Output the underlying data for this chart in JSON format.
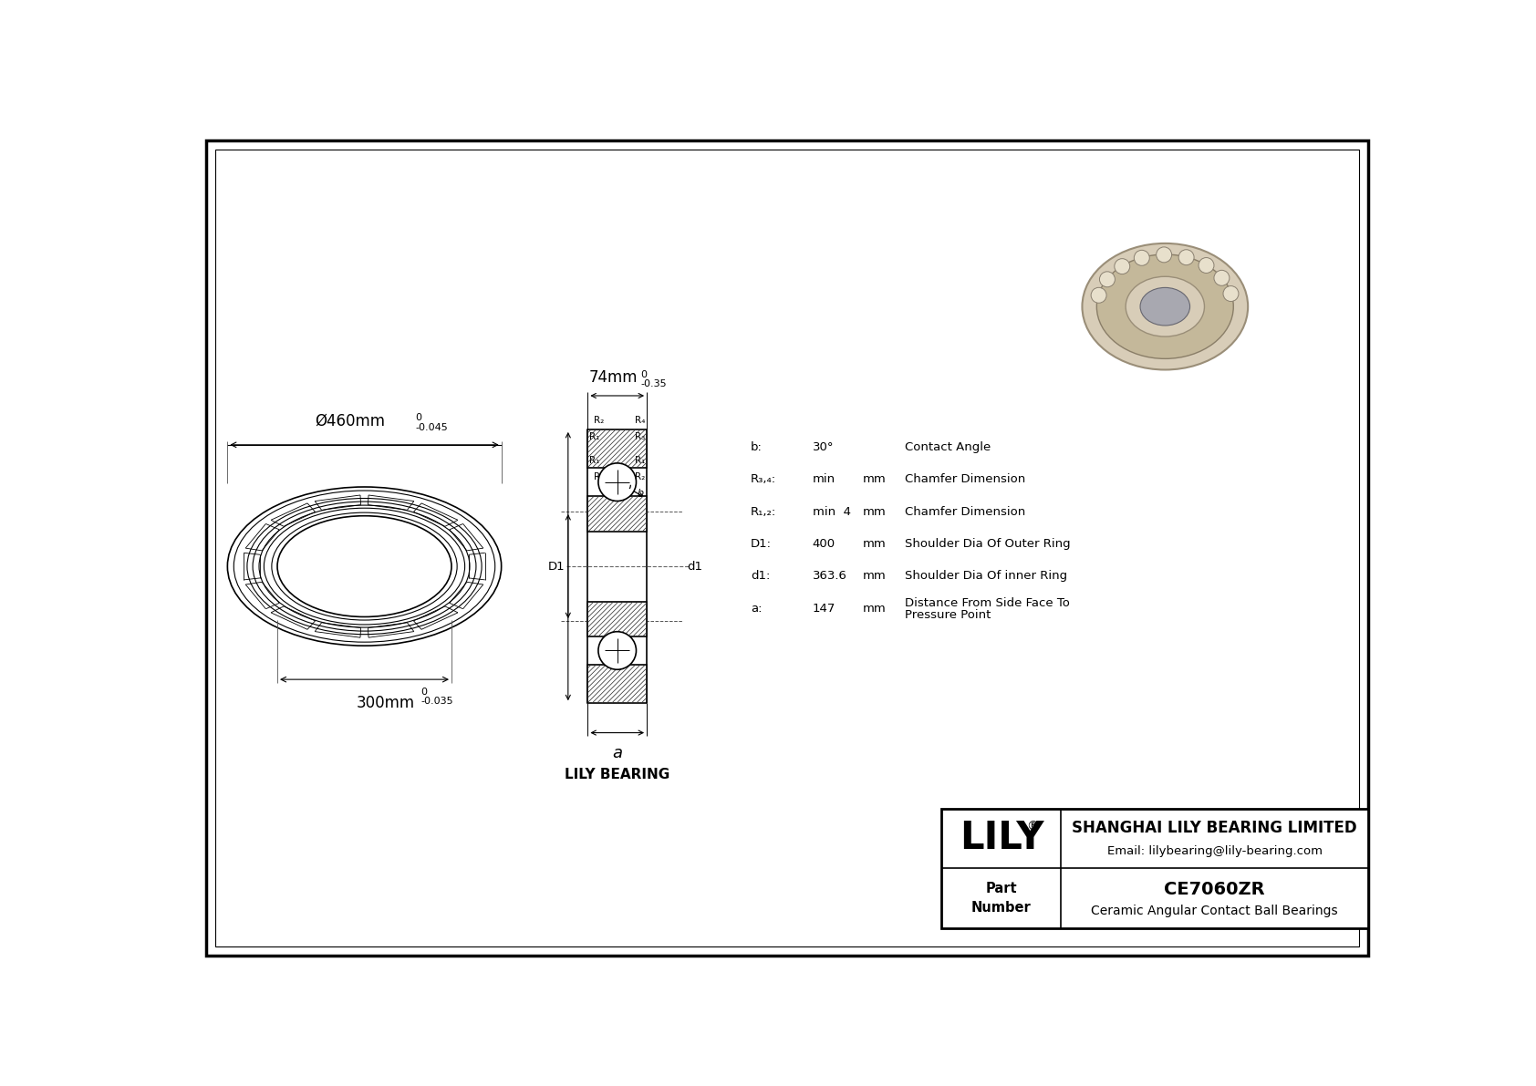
{
  "bg_color": "#ffffff",
  "line_color": "#000000",
  "title": "CE7060ZR",
  "subtitle": "Ceramic Angular Contact Ball Bearings",
  "company": "SHANGHAI LILY BEARING LIMITED",
  "email": "Email: lilybearing@lily-bearing.com",
  "lily_label": "LILY BEARING",
  "od_text": "Ø460mm",
  "od_tol_upper": "0",
  "od_tol_lower": "-0.045",
  "id_text": "300mm",
  "id_tol_upper": "0",
  "id_tol_lower": "-0.035",
  "width_text": "74mm",
  "width_tol_upper": "0",
  "width_tol_lower": "-0.35",
  "params": [
    {
      "symbol": "b:",
      "value": "30°",
      "unit": "",
      "desc": "Contact Angle"
    },
    {
      "symbol": "R₃,₄:",
      "value": "min",
      "unit": "mm",
      "desc": "Chamfer Dimension"
    },
    {
      "symbol": "R₁,₂:",
      "value": "min  4",
      "unit": "mm",
      "desc": "Chamfer Dimension"
    },
    {
      "symbol": "D1:",
      "value": "400",
      "unit": "mm",
      "desc": "Shoulder Dia Of Outer Ring"
    },
    {
      "symbol": "d1:",
      "value": "363.6",
      "unit": "mm",
      "desc": "Shoulder Dia Of inner Ring"
    },
    {
      "symbol": "a:",
      "value": "147",
      "unit": "mm",
      "desc": "Distance From Side Face To\nPressure Point"
    }
  ]
}
